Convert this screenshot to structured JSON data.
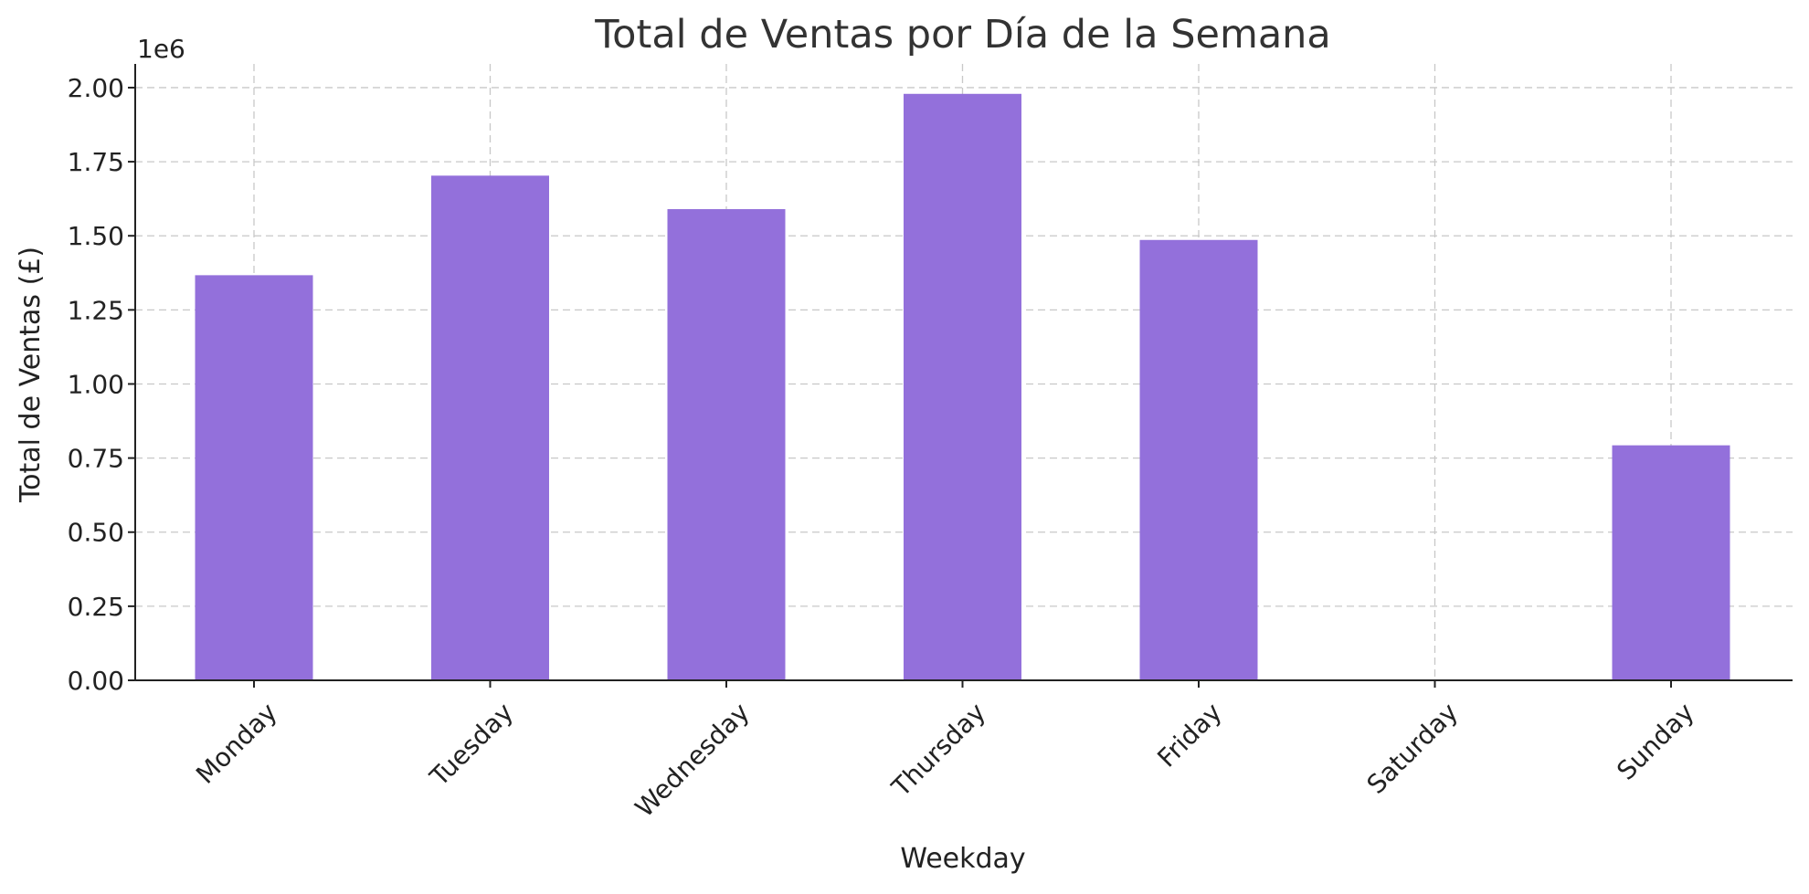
{
  "chart_data": {
    "type": "bar",
    "title": "Total de Ventas por Día de la Semana",
    "xlabel": "Weekday",
    "ylabel": "Total de Ventas (£)",
    "y_offset_label": "1e6",
    "categories": [
      "Monday",
      "Tuesday",
      "Wednesday",
      "Thursday",
      "Friday",
      "Saturday",
      "Sunday"
    ],
    "values": [
      1367000,
      1703000,
      1590000,
      1979000,
      1486000,
      0,
      793000
    ],
    "ylim": [
      0,
      2080000
    ],
    "yticks": [
      0,
      250000,
      500000,
      750000,
      1000000,
      1250000,
      1500000,
      1750000,
      2000000
    ],
    "ytick_labels": [
      "0.00",
      "0.25",
      "0.50",
      "0.75",
      "1.00",
      "1.25",
      "1.50",
      "1.75",
      "2.00"
    ],
    "grid": true,
    "bar_color": "#9370db"
  }
}
